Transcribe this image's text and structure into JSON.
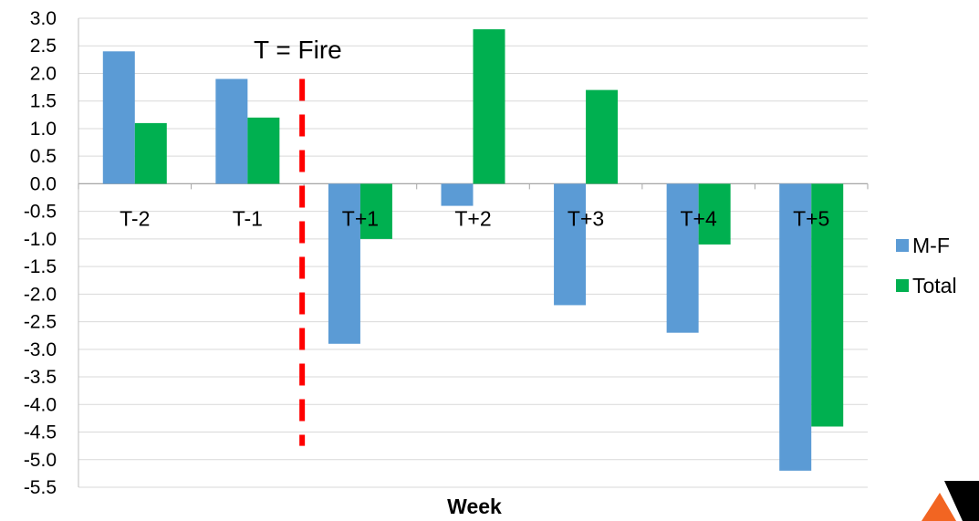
{
  "chart_data": {
    "type": "bar",
    "categories": [
      "T-2",
      "T-1",
      "T+1",
      "T+2",
      "T+3",
      "T+4",
      "T+5"
    ],
    "series": [
      {
        "name": "M-F",
        "values": [
          2.4,
          1.9,
          -2.9,
          -0.4,
          -2.2,
          -2.7,
          -5.2
        ],
        "color": "#5B9BD5"
      },
      {
        "name": "Total",
        "values": [
          1.1,
          1.2,
          -1.0,
          2.8,
          1.7,
          -1.1,
          -4.4
        ],
        "color": "#00B050"
      }
    ],
    "xlabel": "Week",
    "ylabel": "",
    "ylim": [
      -5.5,
      3.0
    ],
    "yticks": [
      "3.0",
      "2.5",
      "2.0",
      "1.5",
      "1.0",
      "0.5",
      "0.0",
      "-0.5",
      "-1.0",
      "-1.5",
      "-2.0",
      "-2.5",
      "-3.0",
      "-3.5",
      "-4.0",
      "-4.5",
      "-5.0",
      "-5.5"
    ],
    "grid": true,
    "legend_position": "right",
    "annotation": {
      "text": "T = Fire",
      "line_color": "#FF0000",
      "line_style": "dashed",
      "between": [
        "T-1",
        "T+1"
      ]
    }
  },
  "logo": {
    "name": "logo-icon",
    "colors": [
      "#000000",
      "#F26522"
    ]
  }
}
